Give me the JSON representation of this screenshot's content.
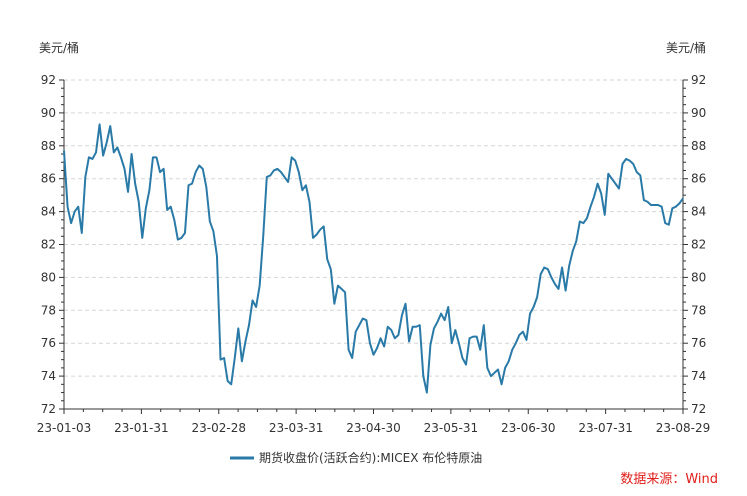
{
  "chart_data": {
    "type": "line",
    "y_unit_left": "美元/桶",
    "y_unit_right": "美元/桶",
    "ylim": [
      72,
      92
    ],
    "yticks": [
      "72",
      "74",
      "76",
      "78",
      "80",
      "82",
      "84",
      "86",
      "88",
      "90",
      "92"
    ],
    "x_ticks": [
      "23-01-03",
      "23-01-31",
      "23-02-28",
      "23-03-31",
      "23-04-30",
      "23-05-31",
      "23-06-30",
      "23-07-31",
      "23-08-29"
    ],
    "grid": true,
    "legend_position": "bottom",
    "source_label": "数据来源：Wind",
    "series": [
      {
        "name": "期货收盘价(活跃合约):MICEX 布伦特原油",
        "color": "#2a7aa8",
        "values": [
          87.7,
          84.3,
          83.3,
          84.0,
          84.3,
          82.7,
          86.1,
          87.3,
          87.2,
          87.6,
          89.3,
          87.4,
          88.2,
          89.2,
          87.6,
          87.9,
          87.3,
          86.6,
          85.2,
          87.5,
          85.7,
          84.6,
          82.4,
          84.2,
          85.3,
          87.3,
          87.3,
          86.4,
          86.6,
          84.1,
          84.3,
          83.5,
          82.3,
          82.4,
          82.7,
          85.6,
          85.7,
          86.4,
          86.8,
          86.6,
          85.5,
          83.4,
          82.8,
          81.3,
          75.0,
          75.1,
          73.7,
          73.5,
          75.1,
          76.9,
          74.9,
          76.1,
          77.1,
          78.6,
          78.2,
          79.5,
          82.5,
          86.1,
          86.2,
          86.5,
          86.6,
          86.4,
          86.1,
          85.8,
          87.3,
          87.1,
          86.4,
          85.3,
          85.6,
          84.6,
          82.4,
          82.6,
          82.9,
          83.1,
          81.1,
          80.5,
          78.4,
          79.5,
          79.3,
          79.1,
          75.6,
          75.1,
          76.7,
          77.1,
          77.5,
          77.4,
          76.0,
          75.3,
          75.7,
          76.3,
          75.8,
          77.0,
          76.8,
          76.3,
          76.5,
          77.7,
          78.4,
          76.1,
          77.0,
          77.0,
          77.1,
          74.0,
          73.0,
          75.9,
          76.9,
          77.3,
          77.8,
          77.4,
          78.2,
          76.0,
          76.8,
          76.0,
          75.1,
          74.7,
          76.3,
          76.4,
          76.4,
          75.6,
          77.1,
          74.5,
          74.0,
          74.2,
          74.4,
          73.5,
          74.5,
          74.9,
          75.6,
          76.0,
          76.5,
          76.7,
          76.2,
          77.8,
          78.2,
          78.8,
          80.2,
          80.6,
          80.5,
          80.0,
          79.6,
          79.3,
          80.6,
          79.2,
          80.7,
          81.6,
          82.2,
          83.4,
          83.3,
          83.6,
          84.3,
          84.9,
          85.7,
          85.1,
          83.8,
          86.3,
          86.0,
          85.7,
          85.4,
          86.9,
          87.2,
          87.1,
          86.9,
          86.4,
          86.2,
          84.7,
          84.6,
          84.4,
          84.4,
          84.4,
          84.3,
          83.3,
          83.2,
          84.2,
          84.3,
          84.5,
          84.8
        ]
      }
    ]
  }
}
